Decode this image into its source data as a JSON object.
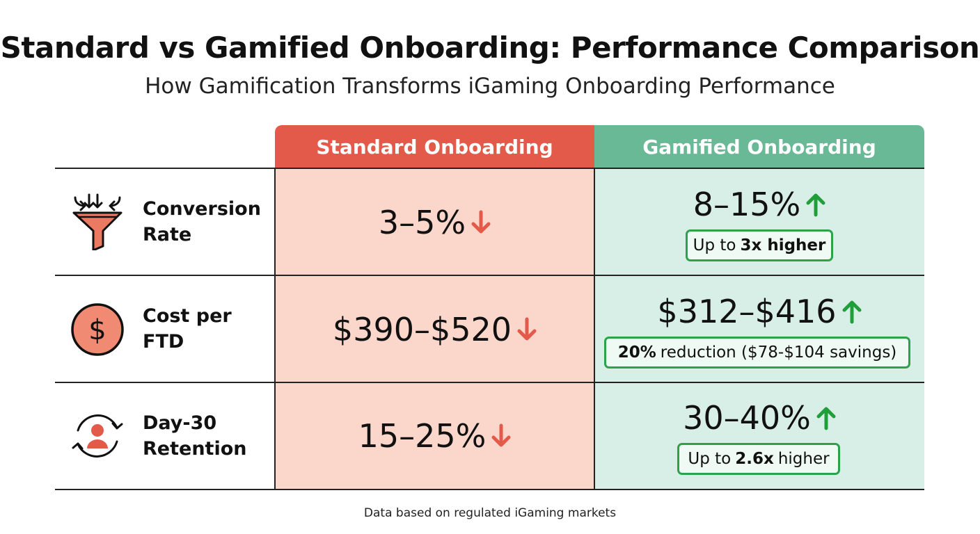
{
  "header": {
    "title": "Standard vs Gamified Onboarding: Performance Comparison",
    "subtitle": "How Gamification Transforms iGaming Onboarding Performance"
  },
  "columns": {
    "standard": "Standard Onboarding",
    "gamified": "Gamified Onboarding"
  },
  "colors": {
    "standard_header": "#e35a4b",
    "standard_body": "#fad6cb",
    "gamified_header": "#69b896",
    "gamified_body": "#d8efe8",
    "down_arrow": "#e35a4b",
    "up_arrow": "#1f9e3a",
    "badge_border": "#2aa34a"
  },
  "rows": [
    {
      "icon": "funnel-icon",
      "label_line1": "Conversion",
      "label_line2": "Rate",
      "standard_value": "3–5%",
      "gamified_value": "8–15%",
      "badge_pre": "Up to",
      "badge_bold": "3x higher",
      "badge_post": ""
    },
    {
      "icon": "dollar-coin-icon",
      "label_line1": "Cost per",
      "label_line2": "FTD",
      "standard_value": "$390–$520",
      "gamified_value": "$312–$416",
      "badge_pre": "",
      "badge_bold": "20%",
      "badge_post": "reduction ($78-$104 savings)"
    },
    {
      "icon": "user-retention-cycle-icon",
      "label_line1": "Day-30",
      "label_line2": "Retention",
      "standard_value": "15–25%",
      "gamified_value": "30–40%",
      "badge_pre": "Up to",
      "badge_bold": "2.6x",
      "badge_post": "higher"
    }
  ],
  "footnote": "Data based on regulated iGaming markets"
}
